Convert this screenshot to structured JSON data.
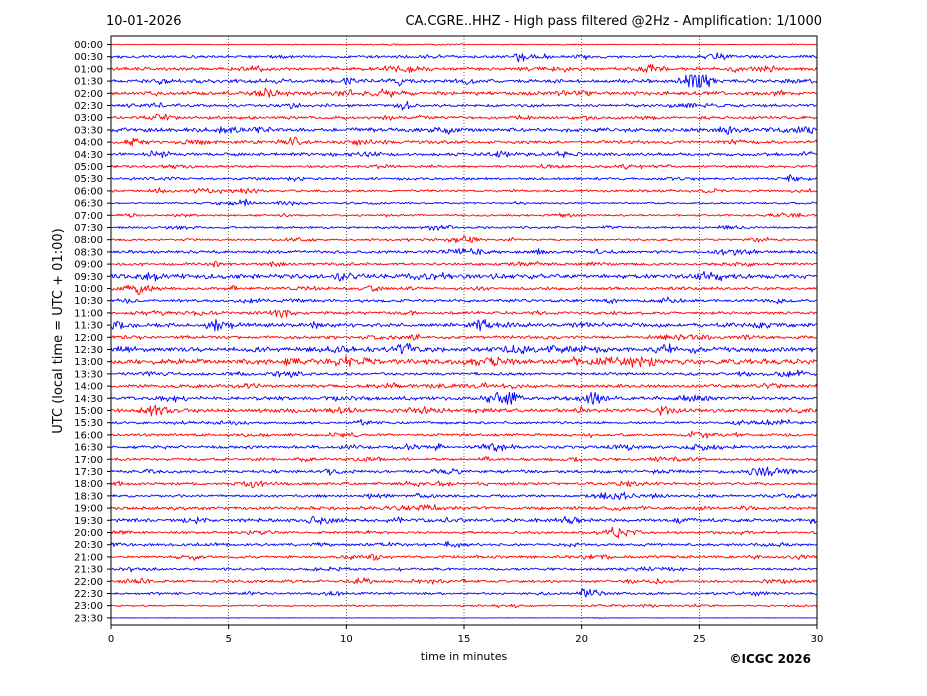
{
  "header": {
    "date": "10-01-2026",
    "station_title": "CA.CGRE..HHZ - High pass filtered @2Hz - Amplification: 1/1000"
  },
  "footer": {
    "copyright": "©ICGC 2026"
  },
  "colors": {
    "trace_a": "#ff0000",
    "trace_b": "#0000ff",
    "frame": "#000000",
    "grid": "#000000"
  },
  "chart_data": {
    "type": "line",
    "title": "CA.CGRE..HHZ - High pass filtered @2Hz - Amplification: 1/1000",
    "xlabel": "time in minutes",
    "ylabel": "UTC (local time = UTC + 01:00)",
    "xlim": [
      0,
      30
    ],
    "x_ticks": [
      "0",
      "5",
      "10",
      "15",
      "20",
      "25",
      "30"
    ],
    "grid": "vertical dotted lines at each x tick",
    "rows": [
      "00:00",
      "00:30",
      "01:00",
      "01:30",
      "02:00",
      "02:30",
      "03:00",
      "03:30",
      "04:00",
      "04:30",
      "05:00",
      "05:30",
      "06:00",
      "06:30",
      "07:00",
      "07:30",
      "08:00",
      "08:30",
      "09:00",
      "09:30",
      "10:00",
      "10:30",
      "11:00",
      "11:30",
      "12:00",
      "12:30",
      "13:00",
      "13:30",
      "14:00",
      "14:30",
      "15:00",
      "15:30",
      "16:00",
      "16:30",
      "17:00",
      "17:30",
      "18:00",
      "18:30",
      "19:00",
      "19:30",
      "20:00",
      "20:30",
      "21:00",
      "21:30",
      "22:00",
      "22:30",
      "23:00",
      "23:30"
    ],
    "row_colors": [
      "red",
      "blue",
      "red",
      "blue",
      "red",
      "blue",
      "red",
      "blue",
      "red",
      "blue",
      "red",
      "blue",
      "red",
      "blue",
      "red",
      "blue",
      "red",
      "blue",
      "red",
      "blue",
      "red",
      "blue",
      "red",
      "blue",
      "red",
      "blue",
      "red",
      "blue",
      "red",
      "blue",
      "red",
      "blue",
      "red",
      "blue",
      "red",
      "blue",
      "red",
      "blue",
      "red",
      "blue",
      "red",
      "blue",
      "red",
      "blue",
      "red",
      "blue",
      "red",
      "blue"
    ],
    "row_amplitude": [
      0.15,
      0.5,
      0.6,
      0.7,
      0.7,
      0.55,
      0.55,
      0.75,
      0.6,
      0.6,
      0.45,
      0.45,
      0.45,
      0.35,
      0.35,
      0.4,
      0.4,
      0.55,
      0.55,
      0.85,
      0.55,
      0.55,
      0.55,
      0.7,
      0.6,
      0.9,
      0.95,
      0.55,
      0.6,
      0.7,
      0.7,
      0.45,
      0.5,
      0.6,
      0.5,
      0.55,
      0.55,
      0.5,
      0.6,
      0.65,
      0.45,
      0.5,
      0.5,
      0.45,
      0.5,
      0.45,
      0.3,
      0.05
    ],
    "events": [
      {
        "row": "00:30",
        "minute": 25.5,
        "strength": 1.8
      },
      {
        "row": "01:00",
        "minute": 23.0,
        "strength": 2.0
      },
      {
        "row": "01:30",
        "minute": 25.0,
        "strength": 1.8
      },
      {
        "row": "02:00",
        "minute": 6.7,
        "strength": 1.8
      },
      {
        "row": "03:30",
        "minute": 5.0,
        "strength": 1.6
      },
      {
        "row": "09:30",
        "minute": 10.0,
        "strength": 1.8
      },
      {
        "row": "11:30",
        "minute": 4.5,
        "strength": 2.2
      },
      {
        "row": "11:30",
        "minute": 15.8,
        "strength": 3.5
      },
      {
        "row": "12:30",
        "minute": 12.5,
        "strength": 2.0
      },
      {
        "row": "12:30",
        "minute": 23.5,
        "strength": 1.8
      },
      {
        "row": "13:00",
        "minute": 9.8,
        "strength": 1.8
      },
      {
        "row": "14:30",
        "minute": 20.5,
        "strength": 2.0
      },
      {
        "row": "15:00",
        "minute": 23.5,
        "strength": 1.8
      },
      {
        "row": "19:30",
        "minute": 19.5,
        "strength": 1.8
      },
      {
        "row": "22:00",
        "minute": 10.8,
        "strength": 1.8
      }
    ]
  }
}
